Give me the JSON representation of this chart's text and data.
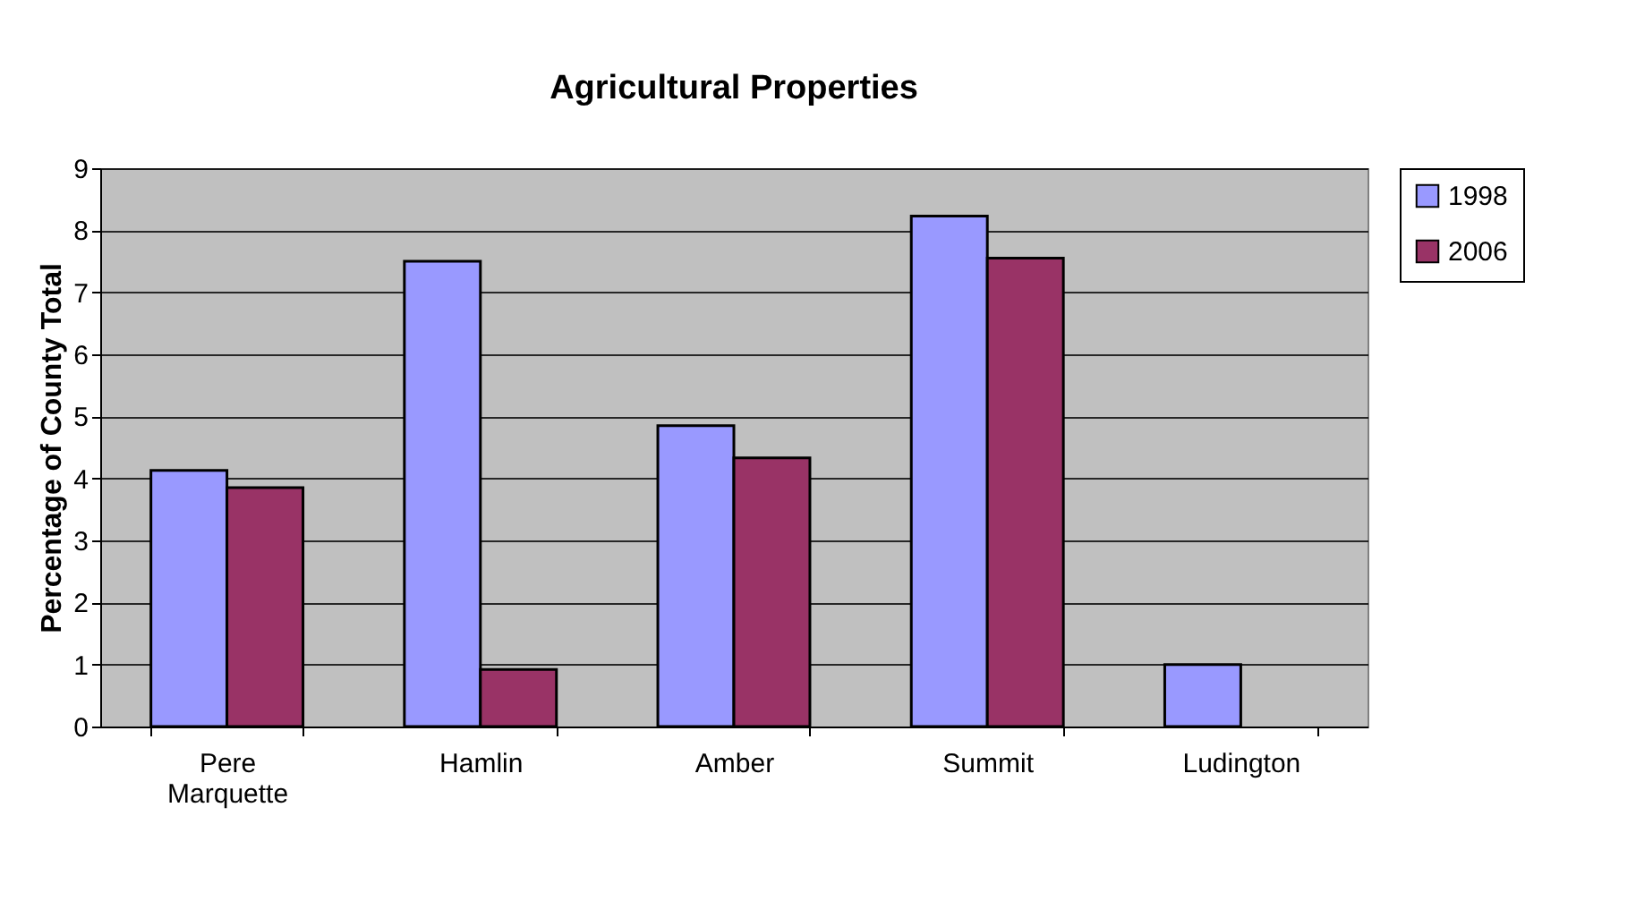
{
  "chart_data": {
    "type": "bar",
    "title": "Agricultural Properties",
    "ylabel": "Percentage of County Total",
    "categories": [
      "Pere Marquette",
      "Hamlin",
      "Amber",
      "Summit",
      "Ludington"
    ],
    "series": [
      {
        "name": "1998",
        "color": "#9999ff",
        "values": [
          4.13,
          7.5,
          4.85,
          8.23,
          1.0
        ]
      },
      {
        "name": "2006",
        "color": "#993366",
        "values": [
          3.85,
          0.92,
          4.33,
          7.55,
          null
        ]
      }
    ],
    "ylim": [
      0,
      9
    ],
    "yticks": [
      0,
      1,
      2,
      3,
      4,
      5,
      6,
      7,
      8,
      9
    ],
    "grid": "y",
    "legend": "right"
  }
}
